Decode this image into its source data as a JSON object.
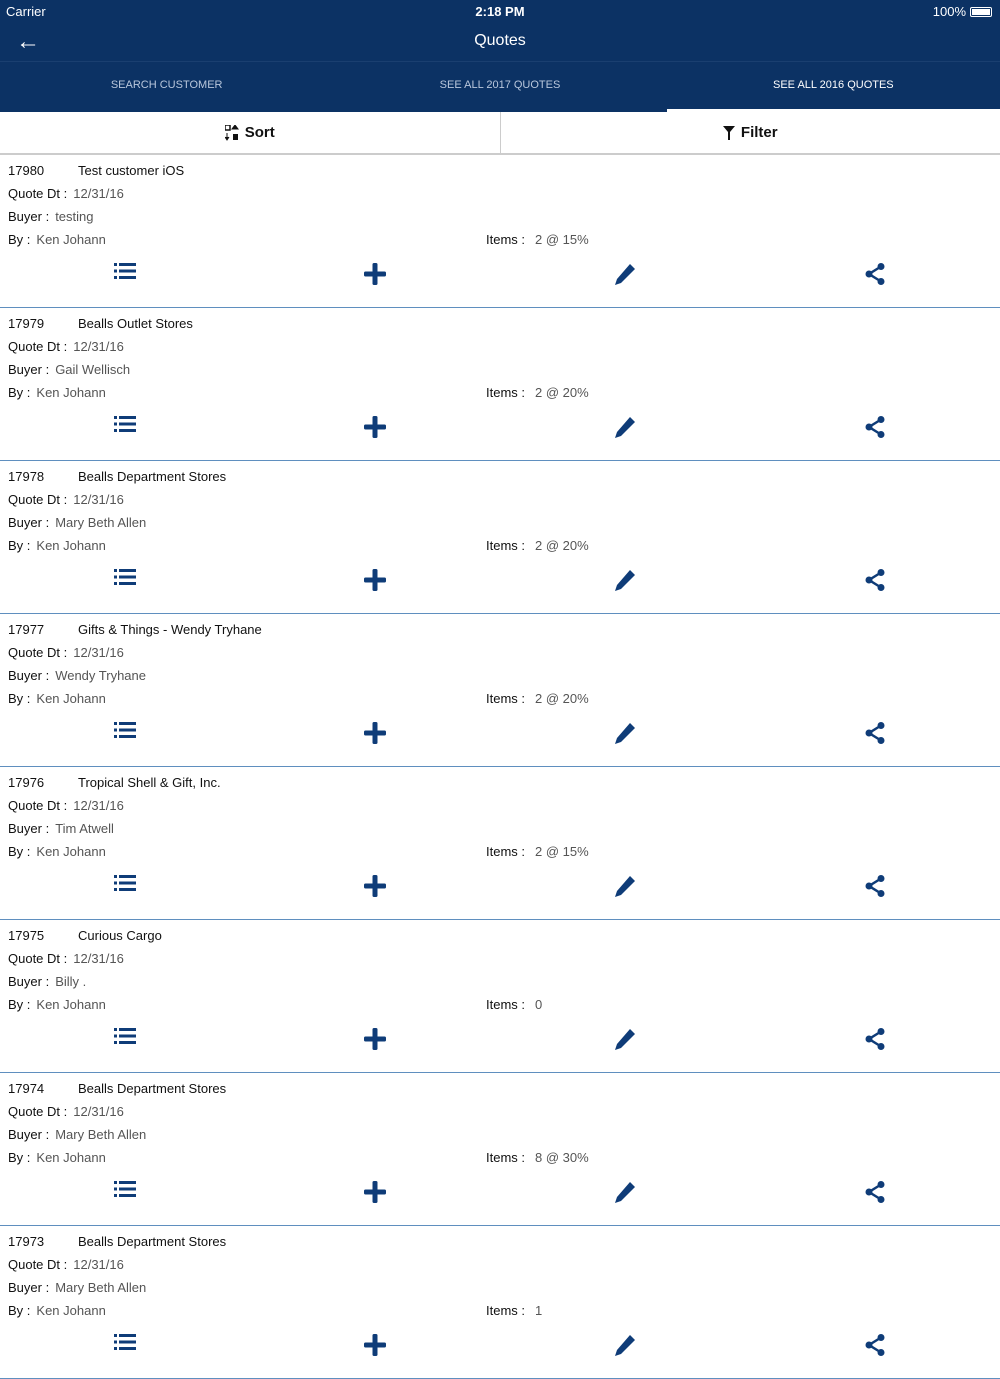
{
  "status": {
    "carrier": "Carrier",
    "time": "2:18 PM",
    "battery": "100%"
  },
  "nav": {
    "title": "Quotes"
  },
  "tabs": [
    {
      "label": "SEARCH CUSTOMER"
    },
    {
      "label": "SEE ALL 2017 QUOTES"
    },
    {
      "label": "SEE ALL 2016 QUOTES",
      "active": true
    }
  ],
  "toolbar": {
    "sort": "Sort",
    "filter": "Filter"
  },
  "labels": {
    "quote_dt": "Quote Dt :",
    "buyer": "Buyer :",
    "by": "By :",
    "items": "Items :"
  },
  "accent": "#0c3264",
  "quotes": [
    {
      "id": "17980",
      "customer": "Test customer iOS",
      "date": "12/31/16",
      "buyer": "testing",
      "by": "Ken Johann",
      "items": "2 @ 15%"
    },
    {
      "id": "17979",
      "customer": "Bealls Outlet Stores",
      "date": "12/31/16",
      "buyer": "Gail Wellisch",
      "by": "Ken Johann",
      "items": "2 @ 20%"
    },
    {
      "id": "17978",
      "customer": "Bealls Department Stores",
      "date": "12/31/16",
      "buyer": "Mary Beth Allen",
      "by": "Ken Johann",
      "items": "2 @ 20%"
    },
    {
      "id": "17977",
      "customer": "Gifts & Things - Wendy Tryhane",
      "date": "12/31/16",
      "buyer": "Wendy Tryhane",
      "by": "Ken Johann",
      "items": "2 @ 20%"
    },
    {
      "id": "17976",
      "customer": "Tropical Shell & Gift, Inc.",
      "date": "12/31/16",
      "buyer": "Tim Atwell",
      "by": "Ken Johann",
      "items": "2 @ 15%"
    },
    {
      "id": "17975",
      "customer": "Curious Cargo",
      "date": "12/31/16",
      "buyer": "Billy .",
      "by": "Ken Johann",
      "items": "0"
    },
    {
      "id": "17974",
      "customer": "Bealls Department Stores",
      "date": "12/31/16",
      "buyer": "Mary Beth Allen",
      "by": "Ken Johann",
      "items": "8 @ 30%"
    },
    {
      "id": "17973",
      "customer": "Bealls Department Stores",
      "date": "12/31/16",
      "buyer": "Mary Beth Allen",
      "by": "Ken Johann",
      "items": "1"
    }
  ]
}
